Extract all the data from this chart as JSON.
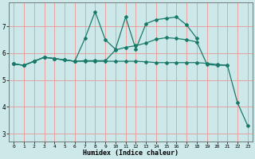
{
  "xlabel": "Humidex (Indice chaleur)",
  "bg_color": "#cce8e8",
  "grid_color": "#e8a0a0",
  "line_color": "#1a7a6a",
  "xlim": [
    -0.5,
    23.5
  ],
  "ylim": [
    2.7,
    7.9
  ],
  "xticks": [
    0,
    1,
    2,
    3,
    4,
    5,
    6,
    7,
    8,
    9,
    10,
    11,
    12,
    13,
    14,
    15,
    16,
    17,
    18,
    19,
    20,
    21,
    22,
    23
  ],
  "yticks": [
    3,
    4,
    5,
    6,
    7
  ],
  "lines": [
    {
      "x": [
        0,
        1,
        2,
        3,
        4,
        5,
        6,
        7,
        8,
        9,
        10,
        11,
        12,
        13,
        14,
        15,
        16,
        17,
        18
      ],
      "y": [
        5.6,
        5.55,
        5.7,
        5.85,
        5.8,
        5.75,
        5.7,
        6.55,
        7.55,
        6.5,
        6.15,
        7.35,
        6.15,
        7.1,
        7.25,
        7.3,
        7.35,
        7.05,
        6.55
      ],
      "marker": "D",
      "markersize": 2.0,
      "linewidth": 0.9,
      "linestyle": "-"
    },
    {
      "x": [
        0,
        1,
        2,
        3,
        4,
        5,
        6,
        7,
        8,
        9,
        10,
        11,
        12,
        13,
        14,
        15,
        16,
        17,
        18,
        19,
        20,
        21
      ],
      "y": [
        5.6,
        5.55,
        5.7,
        5.85,
        5.8,
        5.75,
        5.7,
        5.72,
        5.72,
        5.72,
        6.12,
        6.22,
        6.28,
        6.38,
        6.52,
        6.58,
        6.55,
        6.5,
        6.42,
        5.58,
        5.55,
        5.55
      ],
      "marker": "D",
      "markersize": 2.0,
      "linewidth": 0.9,
      "linestyle": "-"
    },
    {
      "x": [
        0,
        1,
        2,
        3,
        4,
        5,
        6,
        7,
        8,
        9,
        10,
        11,
        12,
        13,
        14,
        15,
        16,
        17,
        18,
        19,
        20,
        21,
        22,
        23
      ],
      "y": [
        5.6,
        5.55,
        5.7,
        5.85,
        5.8,
        5.75,
        5.7,
        5.7,
        5.7,
        5.7,
        5.7,
        5.7,
        5.7,
        5.68,
        5.65,
        5.65,
        5.65,
        5.65,
        5.65,
        5.62,
        5.58,
        5.55,
        4.15,
        3.3
      ],
      "marker": "D",
      "markersize": 2.0,
      "linewidth": 0.9,
      "linestyle": "-"
    }
  ]
}
